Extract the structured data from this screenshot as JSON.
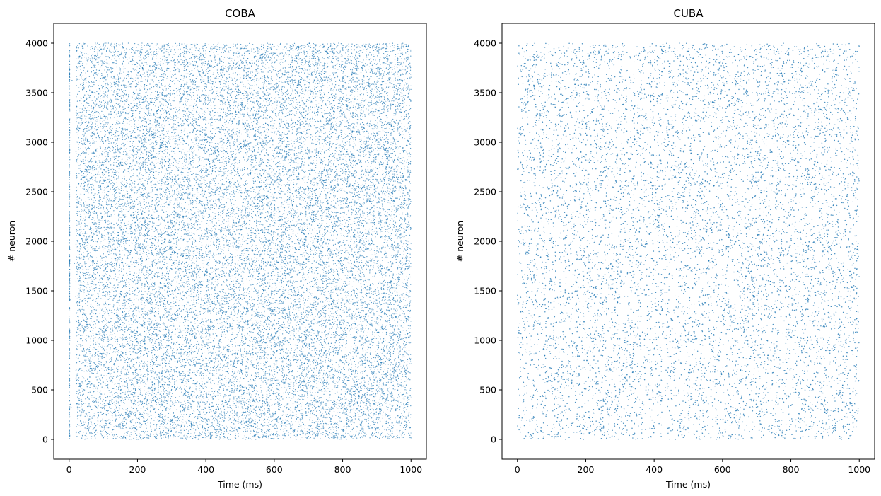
{
  "chart_data": [
    {
      "type": "scatter",
      "title": "COBA",
      "xlabel": "Time (ms)",
      "ylabel": "# neuron",
      "xlim": [
        -45,
        1045
      ],
      "ylim": [
        -200,
        4200
      ],
      "xticks": [
        0,
        200,
        400,
        600,
        800,
        1000
      ],
      "yticks": [
        0,
        500,
        1000,
        1500,
        2000,
        2500,
        3000,
        3500,
        4000
      ],
      "grid": false,
      "marker_color": "#1f77b4",
      "x_range": [
        0,
        1000
      ],
      "neuron_range": [
        0,
        4000
      ],
      "density": "very dense raster"
    },
    {
      "type": "scatter",
      "title": "CUBA",
      "xlabel": "Time (ms)",
      "ylabel": "# neuron",
      "xlim": [
        -45,
        1045
      ],
      "ylim": [
        -200,
        4200
      ],
      "xticks": [
        0,
        200,
        400,
        600,
        800,
        1000
      ],
      "yticks": [
        0,
        500,
        1000,
        1500,
        2000,
        2500,
        3000,
        3500,
        4000
      ],
      "grid": false,
      "marker_color": "#1f77b4",
      "x_range": [
        0,
        1000
      ],
      "neuron_range": [
        0,
        4000
      ],
      "density": "sparse raster"
    }
  ]
}
